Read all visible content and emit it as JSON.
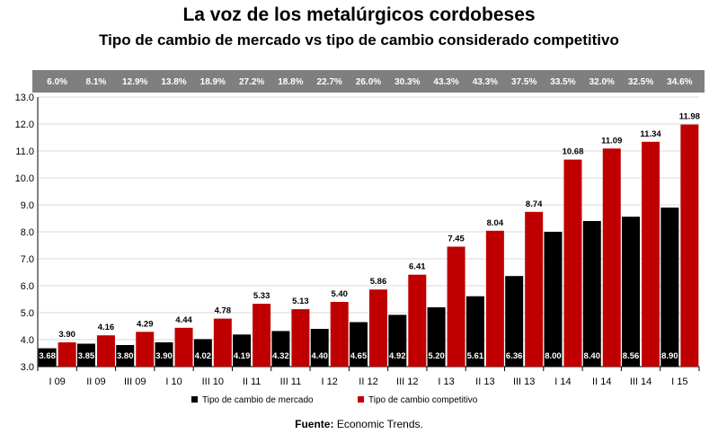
{
  "title": "La voz de los metalúrgicos cordobeses",
  "subtitle": "Tipo de cambio de mercado vs tipo de cambio considerado competitivo",
  "source": {
    "label": "Fuente:",
    "text": "Economic Trends."
  },
  "colors": {
    "market": "#000000",
    "competitive": "#c00000",
    "band": "#7f7f7f",
    "grid": "#d9d9d9"
  },
  "chart_data": {
    "type": "bar",
    "categories": [
      "I 09",
      "II 09",
      "III 09",
      "I 10",
      "III 10",
      "II 11",
      "III 11",
      "I 12",
      "II 12",
      "III 12",
      "I 13",
      "II 13",
      "III 13",
      "I 14",
      "II 14",
      "III 14",
      "I 15"
    ],
    "series": [
      {
        "name": "Tipo de cambio de mercado",
        "values": [
          3.68,
          3.85,
          3.8,
          3.9,
          4.02,
          4.19,
          4.32,
          4.4,
          4.65,
          4.92,
          5.2,
          5.61,
          6.36,
          8.0,
          8.4,
          8.56,
          8.9
        ],
        "labels": [
          "3.68",
          "3.85",
          "3.80",
          "3.90",
          "4.02",
          "4.19",
          "4.32",
          "4.40",
          "4.65",
          "4.92",
          "5.20",
          "5.61",
          "6.36",
          "8.00",
          "8.40",
          "8.56",
          "8.90"
        ]
      },
      {
        "name": "Tipo de cambio competitivo",
        "values": [
          3.9,
          4.16,
          4.29,
          4.44,
          4.78,
          5.33,
          5.13,
          5.4,
          5.86,
          6.41,
          7.45,
          8.04,
          8.74,
          10.68,
          11.09,
          11.34,
          11.98
        ],
        "labels": [
          "3.90",
          "4.16",
          "4.29",
          "4.44",
          "4.78",
          "5.33",
          "5.13",
          "5.40",
          "5.86",
          "6.41",
          "7.45",
          "8.04",
          "8.74",
          "10.68",
          "11.09",
          "11.34",
          "11.98"
        ]
      }
    ],
    "gap_percentages": [
      "6.0%",
      "8.1%",
      "12.9%",
      "13.8%",
      "18.9%",
      "27.2%",
      "18.8%",
      "22.7%",
      "26.0%",
      "30.3%",
      "43.3%",
      "43.3%",
      "37.5%",
      "33.5%",
      "32.0%",
      "32.5%",
      "34.6%"
    ],
    "y_ticks": [
      "3.0",
      "4.0",
      "5.0",
      "6.0",
      "7.0",
      "8.0",
      "9.0",
      "10.0",
      "11.0",
      "12.0",
      "13.0"
    ],
    "ylim": [
      3.0,
      13.0
    ],
    "grid": true,
    "legend_position": "bottom"
  }
}
